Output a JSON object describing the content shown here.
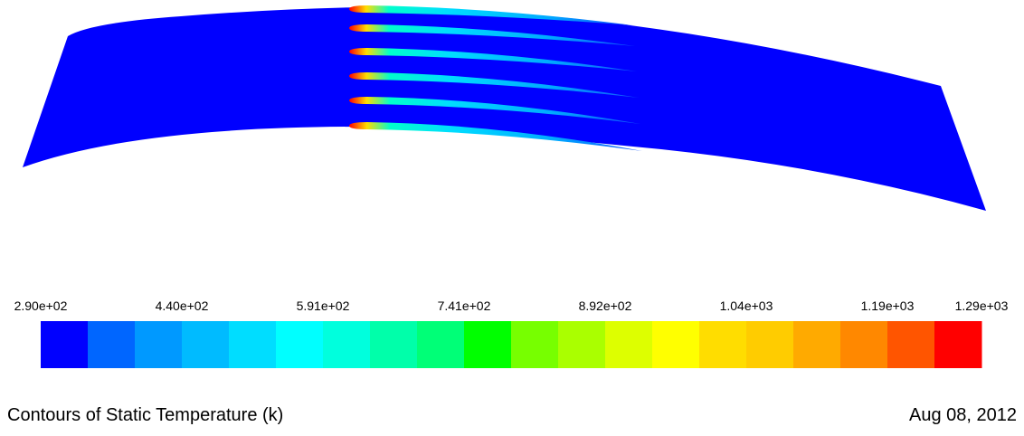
{
  "colorbar": {
    "labels": [
      "2.90e+02",
      "4.40e+02",
      "5.91e+02",
      "7.41e+02",
      "8.92e+02",
      "1.04e+03",
      "1.19e+03",
      "1.29e+03"
    ]
  },
  "title": "Contours of Static Temperature (k)",
  "date": "Aug 08, 2012"
}
